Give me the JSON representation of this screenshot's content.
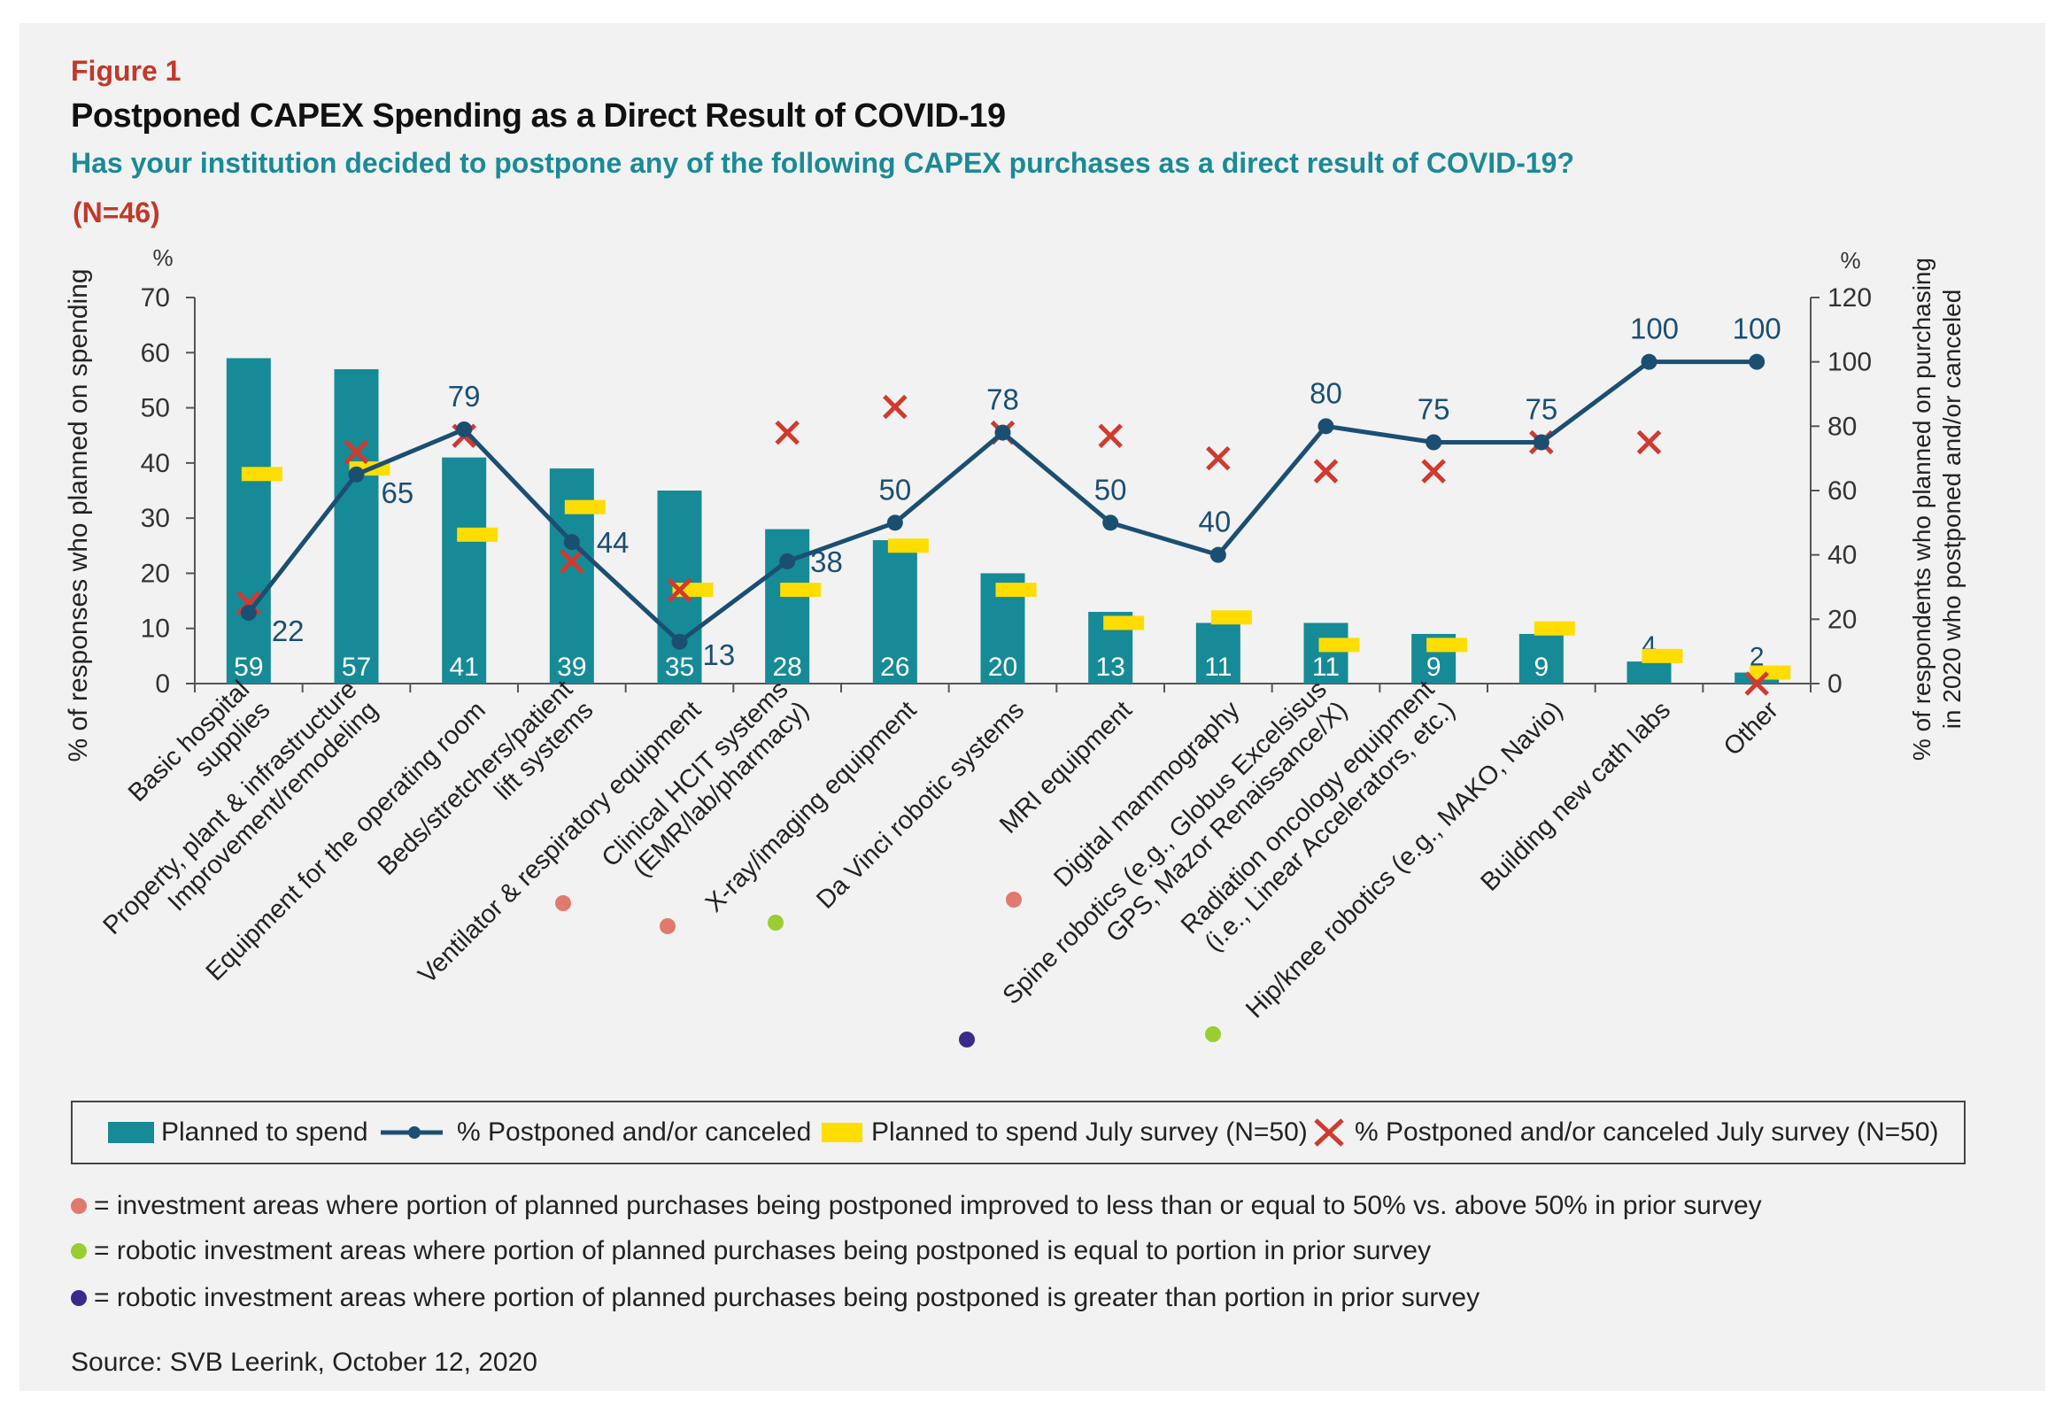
{
  "figure_label": "Figure 1",
  "title": "Postponed CAPEX Spending as a Direct Result of COVID-19",
  "subtitle": "Has your institution decided to postpone any of the following CAPEX purchases as a direct result of COVID-19?",
  "n_label": "(N=46)",
  "source": "Source: SVB Leerink, October 12, 2020",
  "colors": {
    "bar": "#168a96",
    "line": "#1b4f72",
    "july_bar": "#ffdd00",
    "july_x": "#d03a2f",
    "dot_red": "#e07a6e",
    "dot_green": "#9acd32",
    "dot_purple": "#3b2a8c",
    "title_red": "#c0392b",
    "subtitle_teal": "#1a8a96"
  },
  "legend": {
    "planned": "Planned to spend",
    "postponed": "% Postponed and/or canceled",
    "july_planned": "Planned to spend July survey (N=50)",
    "july_postponed": "% Postponed and/or canceled July survey (N=50)"
  },
  "notes": [
    {
      "color": "#e07a6e",
      "text": "= investment areas where portion of planned purchases being postponed improved to less than or equal to 50% vs. above 50% in prior survey"
    },
    {
      "color": "#9acd32",
      "text": "= robotic investment areas where portion of planned purchases being postponed is equal to portion in prior survey"
    },
    {
      "color": "#3b2a8c",
      "text": "= robotic investment areas where portion of planned purchases being postponed is greater than portion in prior survey"
    }
  ],
  "chart_data": {
    "type": "bar",
    "categories": [
      [
        "Basic hospital",
        "supplies"
      ],
      [
        "Property, plant & infrastructure",
        "Improvement/remodeling"
      ],
      [
        "Equipment for the operating room"
      ],
      [
        "Beds/stretchers/patient",
        "lift systems"
      ],
      [
        "Ventilator & respiratory equipment"
      ],
      [
        "Clinical HCIT systems",
        "(EMR/lab/pharmacy)"
      ],
      [
        "X-ray/imaging equipment"
      ],
      [
        "Da Vinci robotic systems"
      ],
      [
        "MRI equipment"
      ],
      [
        "Digital mammography"
      ],
      [
        "Spine robotics (e.g., Globus Excelsisus",
        "GPS, Mazor Renaissance/X)"
      ],
      [
        "Radiation oncology equipment",
        "(i.e., Linear Accelerators, etc.)"
      ],
      [
        "Hip/knee robotics (e.g., MAKO, Navio)"
      ],
      [
        "Building new cath labs"
      ],
      [
        "Other"
      ]
    ],
    "category_markers": [
      null,
      null,
      null,
      null,
      null,
      "red",
      "red",
      "green",
      null,
      "red",
      "purple",
      null,
      "green",
      null,
      null
    ],
    "y_left": {
      "label": "% of responses who planned on spending",
      "unit": "%",
      "lim": [
        0,
        70
      ],
      "ticks": [
        0,
        10,
        20,
        30,
        40,
        50,
        60,
        70
      ]
    },
    "y_right": {
      "label": [
        "% of respondents who planned on purchasing",
        "in 2020 who postponed and/or canceled"
      ],
      "unit": "%",
      "lim": [
        0,
        120
      ],
      "ticks": [
        0,
        20,
        40,
        60,
        80,
        100,
        120
      ]
    },
    "series": [
      {
        "name": "Planned to spend",
        "type": "bar",
        "axis": "left",
        "values": [
          59,
          57,
          41,
          39,
          35,
          28,
          26,
          20,
          13,
          11,
          11,
          9,
          9,
          4,
          2
        ]
      },
      {
        "name": "% Postponed and/or canceled",
        "type": "line",
        "axis": "right",
        "values": [
          22,
          65,
          79,
          44,
          13,
          38,
          50,
          78,
          50,
          40,
          80,
          75,
          75,
          100,
          100
        ]
      },
      {
        "name": "Planned to spend July survey (N=50)",
        "type": "marker",
        "axis": "left",
        "values": [
          38,
          39,
          27,
          32,
          17,
          17,
          25,
          17,
          11,
          12,
          7,
          7,
          10,
          5,
          2
        ]
      },
      {
        "name": "% Postponed and/or canceled July survey (N=50)",
        "type": "x-marker",
        "axis": "right",
        "values": [
          25,
          72,
          77,
          38,
          29,
          78,
          null,
          78,
          77,
          70,
          66,
          66,
          75,
          75,
          0
        ]
      }
    ],
    "x_marker_overrides": {
      "6": 86
    },
    "bar_value_labels": [
      "59",
      "57",
      "41",
      "39",
      "35",
      "28",
      "26",
      "20",
      "13",
      "11",
      "11",
      "9",
      "9",
      "4",
      "2"
    ],
    "line_value_labels": [
      "22",
      "65",
      "79",
      "44",
      "13",
      "38",
      "50",
      "78",
      "50",
      "40",
      "80",
      "75",
      "75",
      "100",
      "100"
    ],
    "grid": false,
    "legend_position": "bottom"
  }
}
